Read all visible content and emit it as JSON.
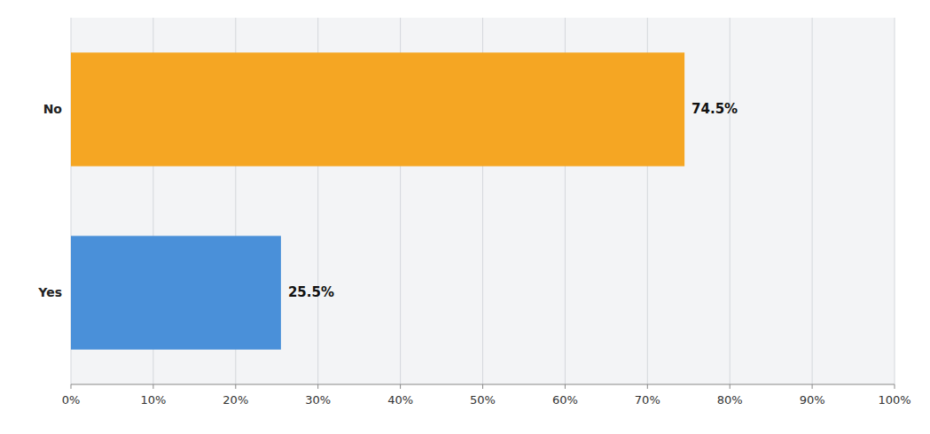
{
  "chart_data": {
    "type": "bar",
    "orientation": "horizontal",
    "categories": [
      "Yes",
      "No"
    ],
    "values": [
      25.5,
      74.5
    ],
    "value_labels": [
      "25.5%",
      "74.5%"
    ],
    "data_labels": true,
    "colors": [
      "#4A90D9",
      "#F5A623"
    ],
    "xlim": [
      0,
      100
    ],
    "xticks": [
      {
        "value": 0,
        "label": "0%"
      },
      {
        "value": 10,
        "label": "10%"
      },
      {
        "value": 20,
        "label": "20%"
      },
      {
        "value": 30,
        "label": "30%"
      },
      {
        "value": 40,
        "label": "40%"
      },
      {
        "value": 50,
        "label": "50%"
      },
      {
        "value": 60,
        "label": "60%"
      },
      {
        "value": 70,
        "label": "70%"
      },
      {
        "value": 80,
        "label": "80%"
      },
      {
        "value": 90,
        "label": "90%"
      },
      {
        "value": 100,
        "label": "100%"
      }
    ],
    "grid": true
  }
}
